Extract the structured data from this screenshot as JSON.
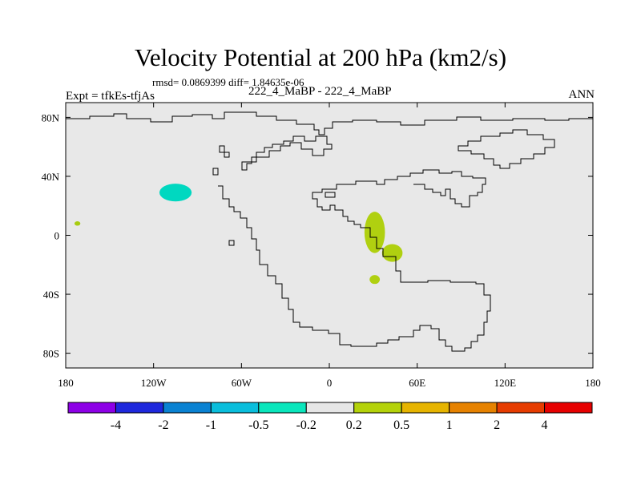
{
  "title": "Velocity Potential at 200 hPa (km2/s)",
  "stats": "rmsd= 0.0869399 diff= 1.84635e-06",
  "expt": "Expt = tfkEs-tfjAs",
  "case": "222_4_MaBP - 222_4_MaBP",
  "season": "ANN",
  "map": {
    "lon_range": [
      -180,
      180
    ],
    "lat_range": [
      -90,
      90
    ],
    "background_color": "#e8e8e8",
    "x_ticks": [
      {
        "value": -180,
        "label": "180"
      },
      {
        "value": -120,
        "label": "120W"
      },
      {
        "value": -60,
        "label": "60W"
      },
      {
        "value": 0,
        "label": "0"
      },
      {
        "value": 60,
        "label": "60E"
      },
      {
        "value": 120,
        "label": "120E"
      },
      {
        "value": 180,
        "label": "180"
      }
    ],
    "y_ticks": [
      {
        "value": 80,
        "label": "80N"
      },
      {
        "value": 40,
        "label": "40N"
      },
      {
        "value": 0,
        "label": "0"
      },
      {
        "value": -40,
        "label": "40S"
      },
      {
        "value": -80,
        "label": "80S"
      }
    ],
    "anomalies": [
      {
        "center": [
          -105,
          29
        ],
        "rx_deg": 11,
        "ry_deg": 6,
        "color": "#00d8c0"
      },
      {
        "center": [
          -172,
          8
        ],
        "rx_deg": 2,
        "ry_deg": 1.5,
        "color": "#a8cc10"
      },
      {
        "center": [
          31,
          2
        ],
        "rx_deg": 7,
        "ry_deg": 14,
        "color": "#b0d010"
      },
      {
        "center": [
          43,
          -12
        ],
        "rx_deg": 7,
        "ry_deg": 6,
        "color": "#b0d010"
      },
      {
        "center": [
          31,
          -30
        ],
        "rx_deg": 3.5,
        "ry_deg": 3,
        "color": "#b0d010"
      }
    ]
  },
  "colorbar": {
    "colors": [
      "#8d00e6",
      "#1e28dc",
      "#0a82d2",
      "#0abedc",
      "#0ae6bc",
      "#e6e6e6",
      "#b4d20a",
      "#e6b400",
      "#e68200",
      "#e63c00",
      "#e60000"
    ],
    "labels": [
      "-4",
      "-2",
      "-1",
      "-0.5",
      "-0.2",
      "0.2",
      "0.5",
      "1",
      "2",
      "4"
    ]
  }
}
